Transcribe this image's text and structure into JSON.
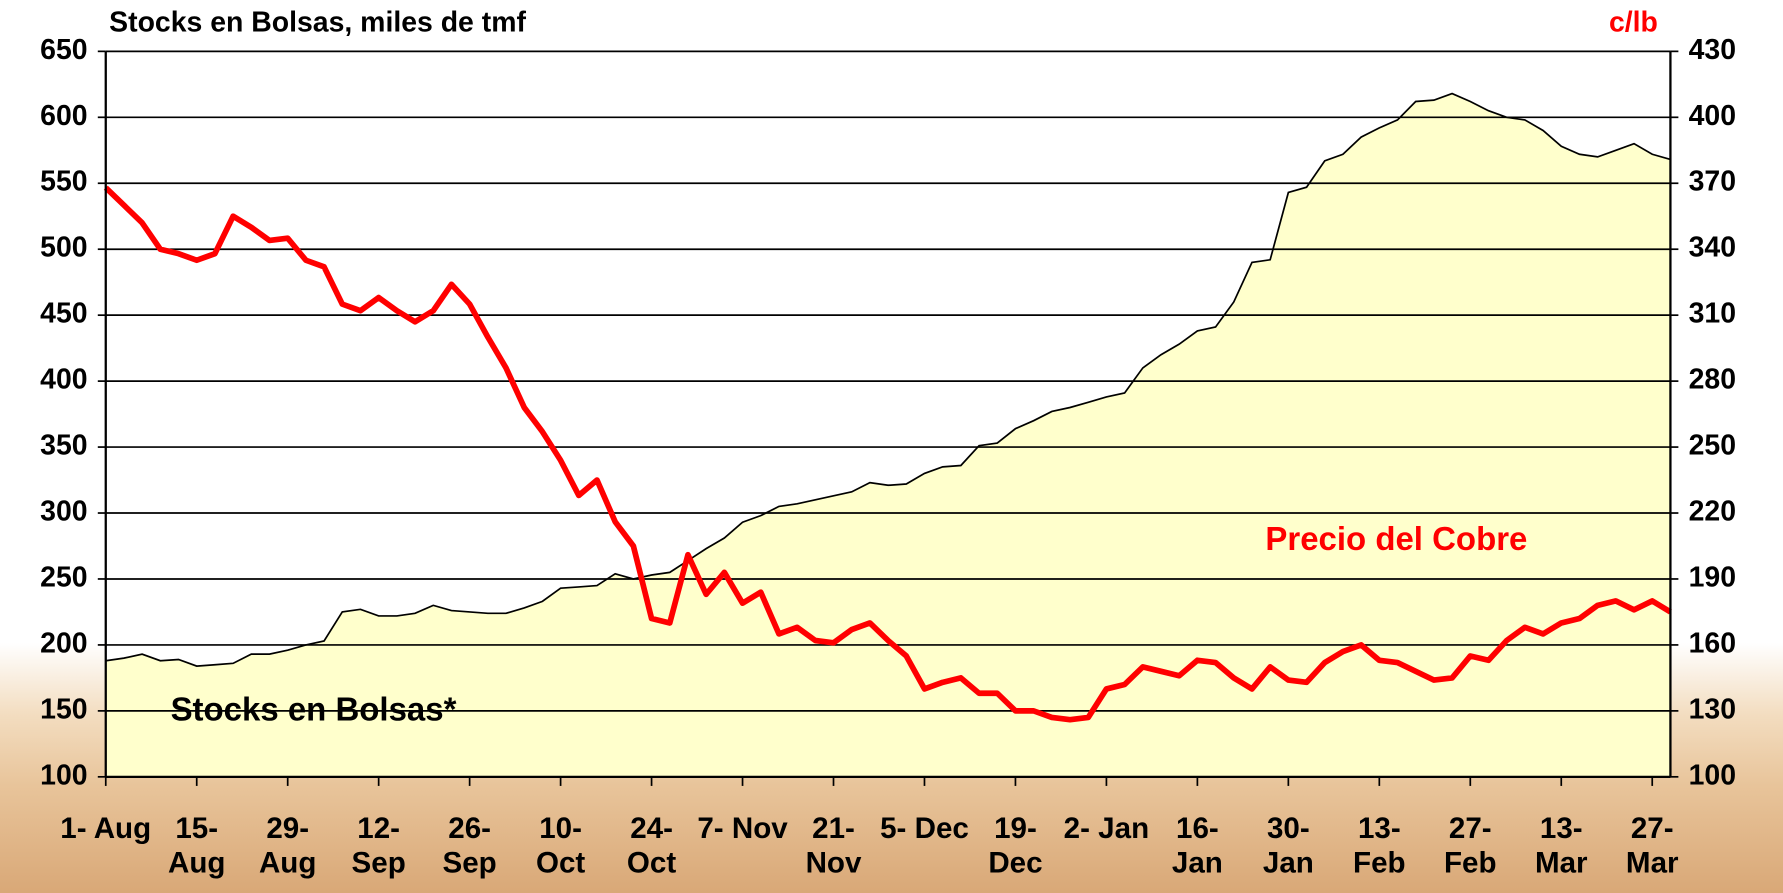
{
  "chart_data": {
    "type": "line",
    "title": "Stocks en Bolsas, miles de tmf",
    "y2_label": "c/lb",
    "categories": [
      "1- Aug",
      null,
      null,
      null,
      null,
      "15- Aug",
      null,
      null,
      null,
      null,
      "29- Aug",
      null,
      null,
      null,
      null,
      "12- Sep",
      null,
      null,
      null,
      null,
      "26- Sep",
      null,
      null,
      null,
      null,
      "10- Oct",
      null,
      null,
      null,
      null,
      "24- Oct",
      null,
      null,
      null,
      null,
      "7- Nov",
      null,
      null,
      null,
      null,
      "21- Nov",
      null,
      null,
      null,
      null,
      "5- Dec",
      null,
      null,
      null,
      null,
      "19- Dec",
      null,
      null,
      null,
      null,
      "2- Jan",
      null,
      null,
      null,
      null,
      "16- Jan",
      null,
      null,
      null,
      null,
      "30- Jan",
      null,
      null,
      null,
      null,
      "13- Feb",
      null,
      null,
      null,
      null,
      "27- Feb",
      null,
      null,
      null,
      null,
      "13- Mar",
      null,
      null,
      null,
      null,
      "27- Mar",
      null
    ],
    "series": [
      {
        "name": "Stocks en Bolsas*",
        "color": "#ffffcc",
        "line_color": "#000000",
        "area": true,
        "axis": "y",
        "values": [
          188,
          190,
          193,
          188,
          189,
          184,
          185,
          186,
          193,
          193,
          196,
          200,
          203,
          225,
          227,
          222,
          222,
          224,
          230,
          226,
          225,
          224,
          224,
          228,
          233,
          243,
          244,
          245,
          254,
          250,
          253,
          255,
          264,
          273,
          281,
          293,
          298,
          305,
          307,
          310,
          313,
          316,
          323,
          321,
          322,
          330,
          335,
          336,
          351,
          353,
          364,
          370,
          377,
          380,
          384,
          388,
          391,
          410,
          420,
          428,
          438,
          441,
          460,
          490,
          492,
          543,
          547,
          567,
          572,
          585,
          592,
          598,
          612,
          613,
          618,
          612,
          605,
          600,
          598,
          590,
          578,
          572,
          570,
          575,
          580,
          572,
          568
        ]
      },
      {
        "name": "Precio del Cobre",
        "color": "#ff0000",
        "area": false,
        "axis": "y2",
        "values": [
          368,
          360,
          352,
          340,
          338,
          335,
          338,
          355,
          350,
          344,
          345,
          335,
          332,
          315,
          312,
          318,
          312,
          307,
          312,
          324,
          315,
          300,
          286,
          268,
          257,
          244,
          228,
          235,
          216,
          205,
          172,
          170,
          201,
          183,
          193,
          179,
          184,
          165,
          168,
          162,
          161,
          167,
          170,
          162,
          155,
          140,
          143,
          145,
          138,
          138,
          130,
          130,
          127,
          126,
          127,
          140,
          142,
          150,
          148,
          146,
          153,
          152,
          145,
          140,
          150,
          144,
          143,
          152,
          157,
          160,
          153,
          152,
          148,
          144,
          145,
          155,
          153,
          162,
          168,
          165,
          170,
          172,
          178,
          180,
          176,
          180,
          175
        ]
      }
    ],
    "ylim": [
      100,
      650
    ],
    "yticks": [
      100,
      150,
      200,
      250,
      300,
      350,
      400,
      450,
      500,
      550,
      600,
      650
    ],
    "y2lim": [
      100,
      430
    ],
    "y2ticks": [
      100,
      130,
      160,
      190,
      220,
      250,
      280,
      310,
      340,
      370,
      400,
      430
    ],
    "grid": true
  }
}
